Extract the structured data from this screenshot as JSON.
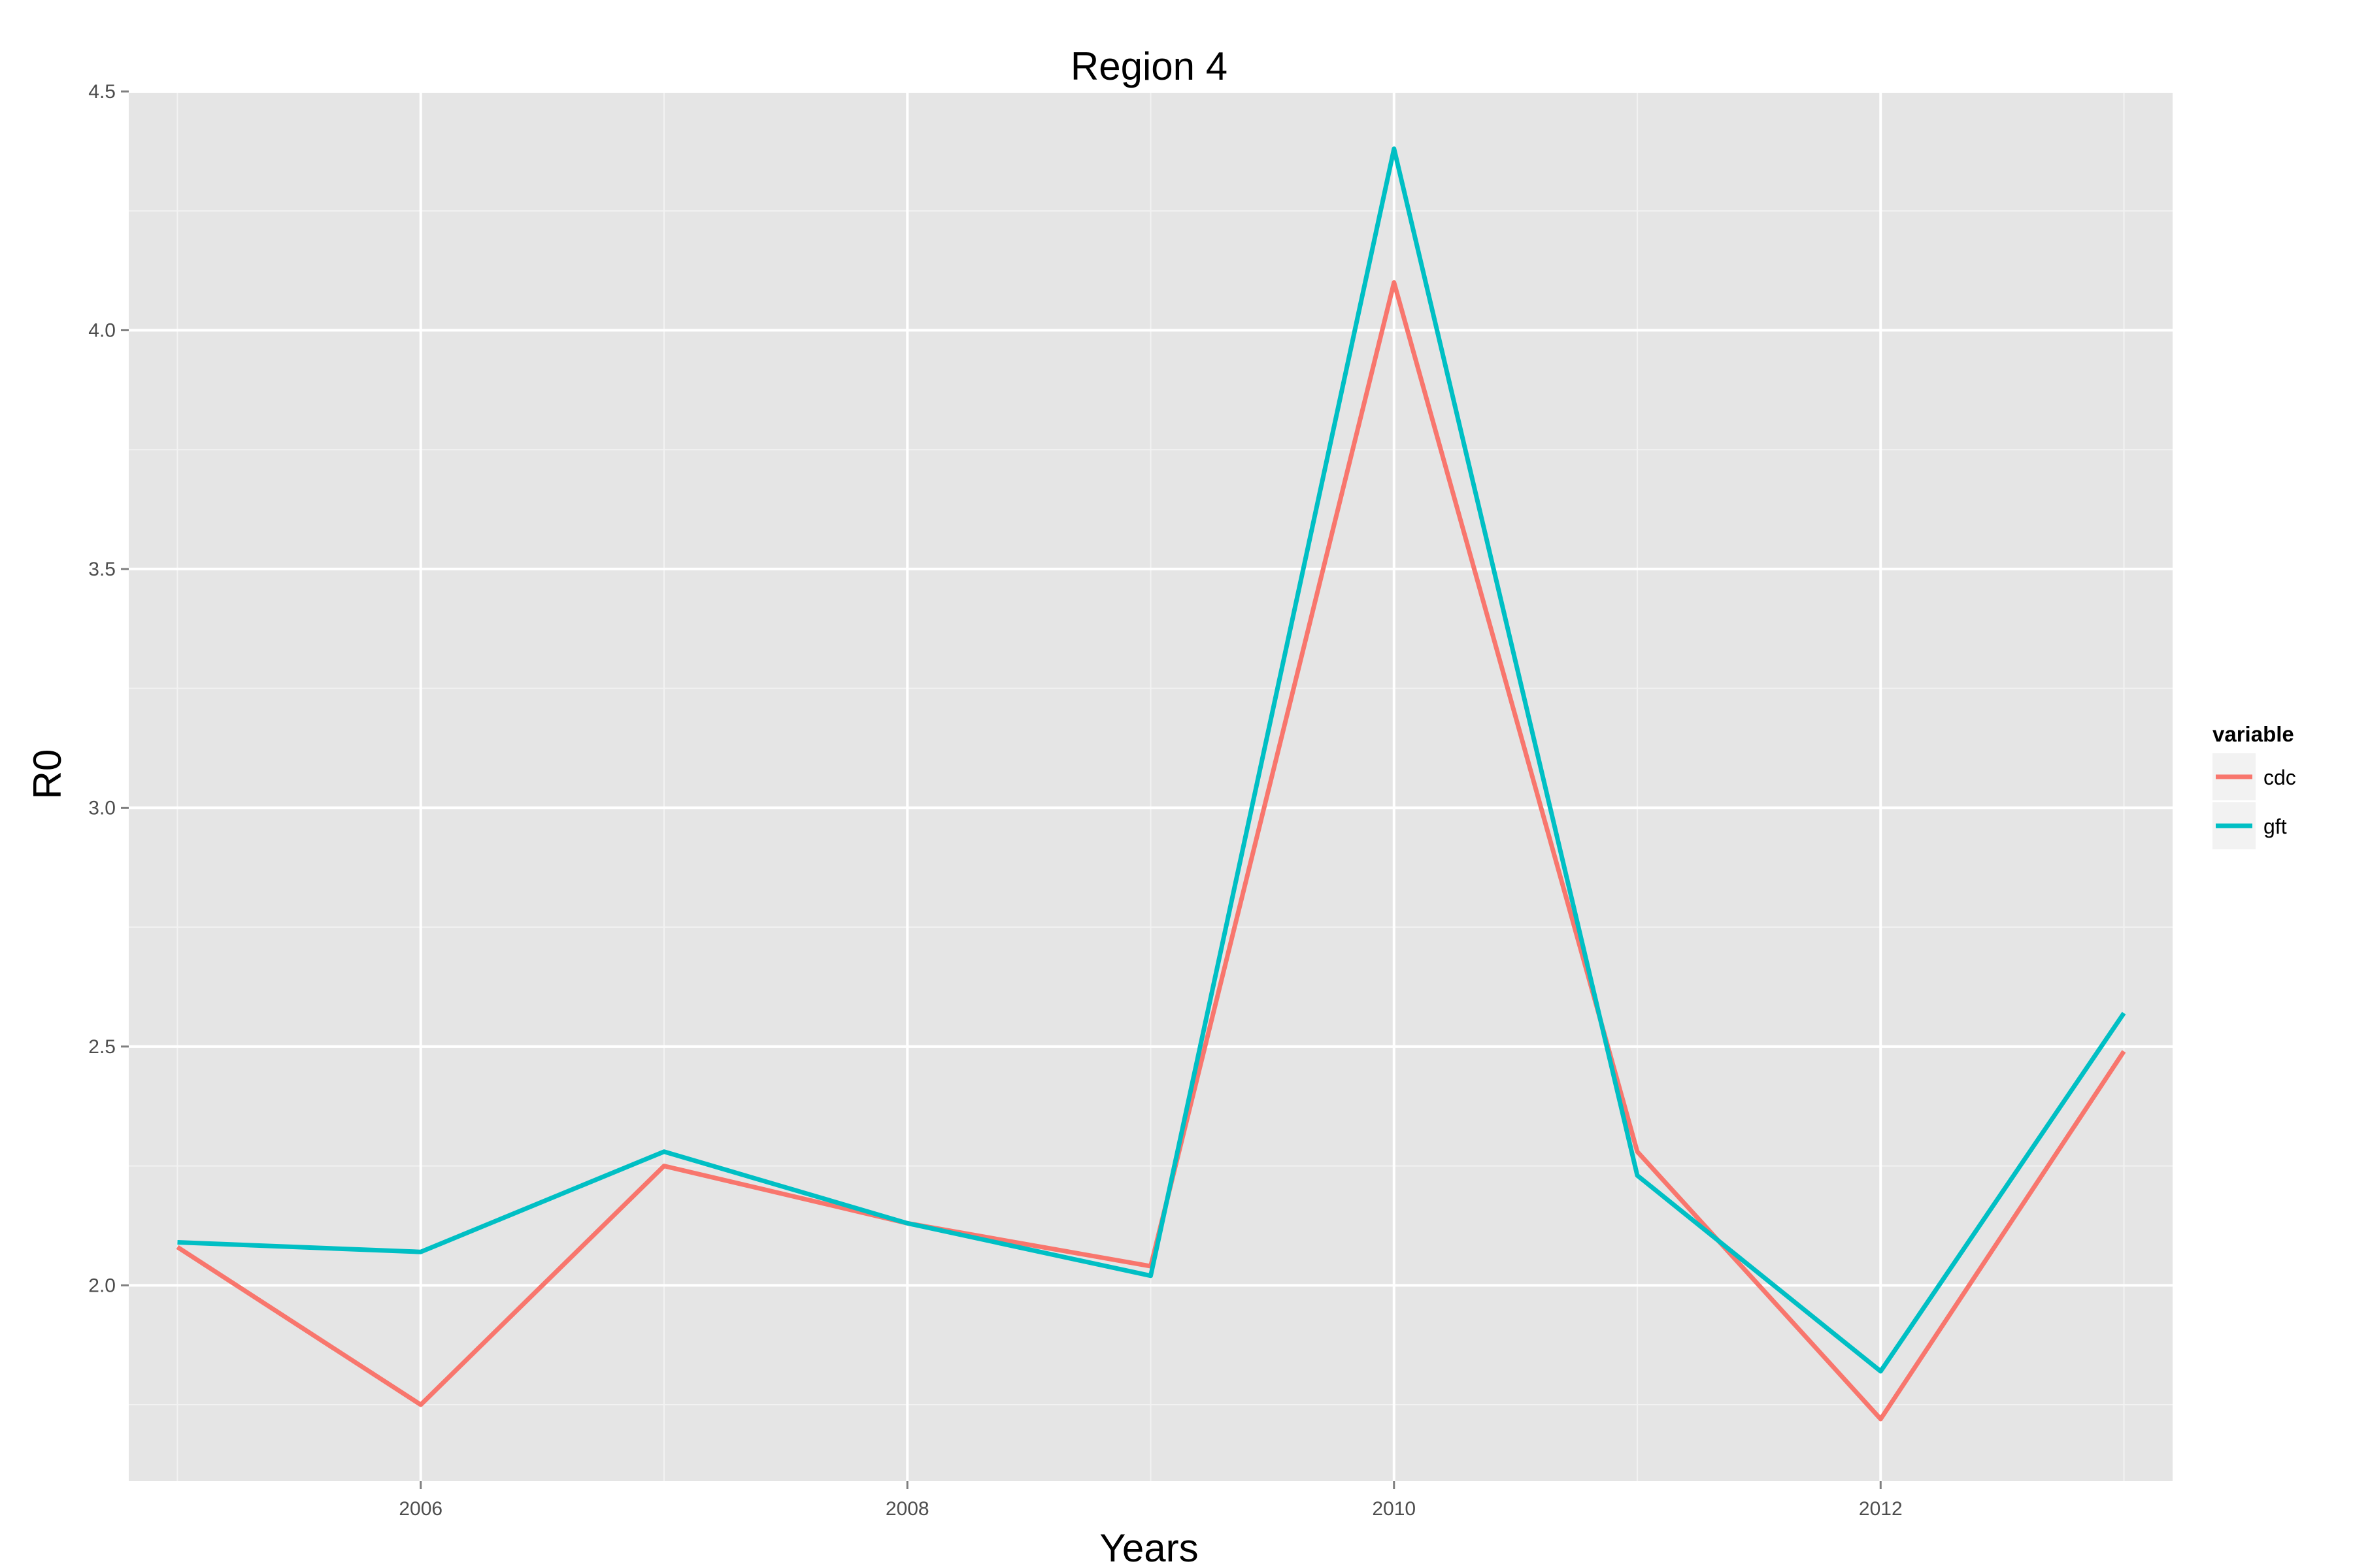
{
  "chart_data": {
    "type": "line",
    "title": "Region 4",
    "xlabel": "Years",
    "ylabel": "R0",
    "x": [
      2005,
      2006,
      2007,
      2008,
      2009,
      2010,
      2011,
      2012,
      2013
    ],
    "xlim": [
      2004.8,
      2013.2
    ],
    "ylim": [
      1.59,
      4.5
    ],
    "x_ticks": [
      2006,
      2008,
      2010,
      2012
    ],
    "x_tick_labels": [
      "2006",
      "2008",
      "2010",
      "2012"
    ],
    "y_ticks": [
      2.0,
      2.5,
      3.0,
      3.5,
      4.0,
      4.5
    ],
    "y_tick_labels": [
      "2.0",
      "2.5",
      "3.0",
      "3.5",
      "4.0",
      "4.5"
    ],
    "x_minor_ticks": [
      2005,
      2007,
      2009,
      2011,
      2013
    ],
    "y_minor_ticks": [
      1.75,
      2.25,
      2.75,
      3.25,
      3.75,
      4.25
    ],
    "grid": true,
    "legend": {
      "title": "variable",
      "position": "right"
    },
    "series": [
      {
        "name": "cdc",
        "color": "#F8766D",
        "values": [
          2.08,
          1.75,
          2.25,
          2.13,
          2.04,
          4.1,
          2.28,
          1.72,
          2.49
        ]
      },
      {
        "name": "gft",
        "color": "#00BFC4",
        "values": [
          2.09,
          2.07,
          2.28,
          2.13,
          2.02,
          4.38,
          2.23,
          1.82,
          2.57
        ]
      }
    ],
    "panel_color": "#E5E5E5",
    "grid_color": "#FFFFFF"
  }
}
